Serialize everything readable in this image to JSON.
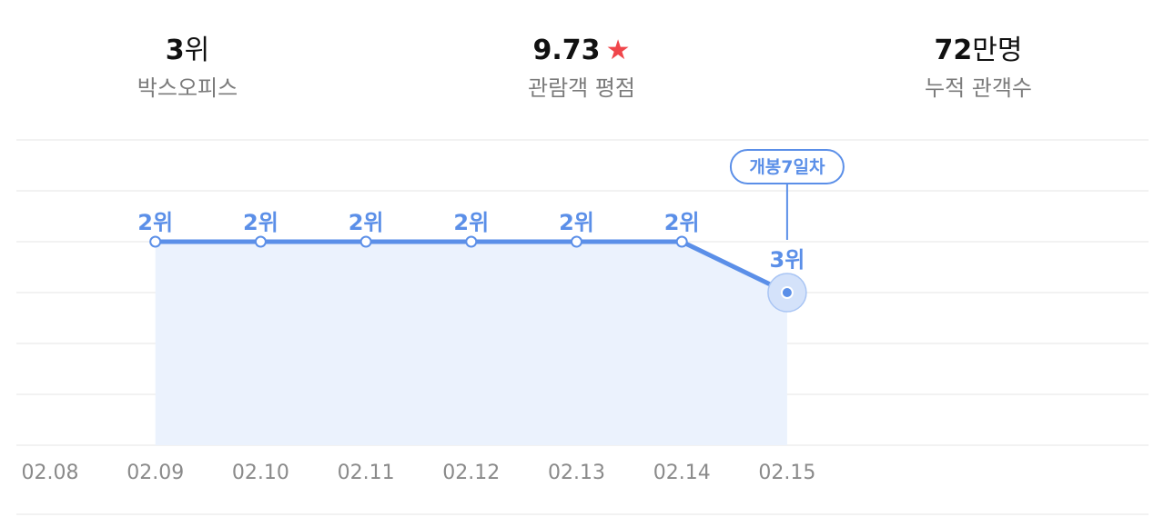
{
  "summary": {
    "rank": {
      "value": "3",
      "unit": "위",
      "label": "박스오피스"
    },
    "rating": {
      "value": "9.73",
      "icon": "star-icon",
      "icon_char": "★",
      "label": "관람객 평점"
    },
    "audience": {
      "value": "72",
      "unit": "만명",
      "label": "누적 관객수"
    }
  },
  "colors": {
    "line": "#5b8fe8",
    "area": "#ebf2fd",
    "grid": "#ededed",
    "label": "#5b8fe8",
    "axis_text": "#8a8a8a",
    "star": "#f0464b"
  },
  "chart_data": {
    "type": "line",
    "categories": [
      "02.08",
      "02.09",
      "02.10",
      "02.11",
      "02.12",
      "02.13",
      "02.14",
      "02.15"
    ],
    "series": [
      {
        "values": [
          null,
          2,
          2,
          2,
          2,
          2,
          2,
          3
        ],
        "labels": [
          null,
          "2위",
          "2위",
          "2위",
          "2위",
          "2위",
          "2위",
          "3위"
        ]
      }
    ],
    "y_inverted": true,
    "ylim": [
      6,
      0
    ],
    "grid": true,
    "annotation": {
      "category": "02.15",
      "text": "개봉7일차"
    }
  }
}
